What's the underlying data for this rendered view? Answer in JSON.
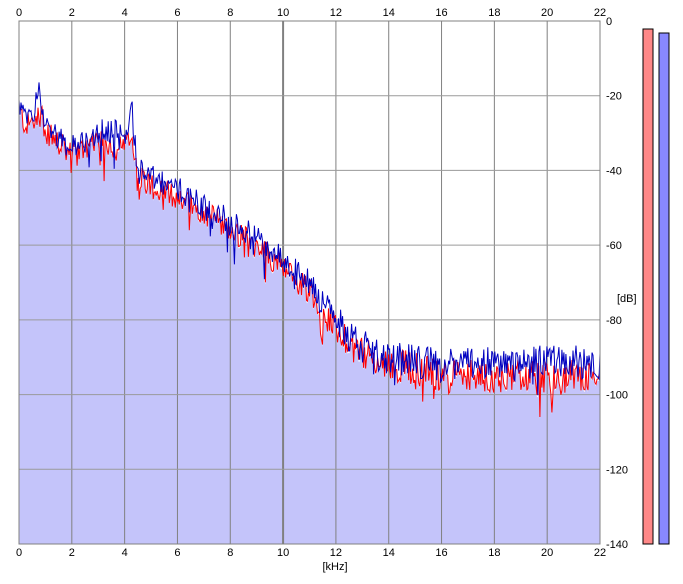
{
  "chart_data": {
    "type": "area",
    "xlabel": "[kHz]",
    "ylabel": "[dB]",
    "xlim": [
      0,
      22
    ],
    "ylim": [
      -140,
      0
    ],
    "x_ticks": [
      "0",
      "2",
      "4",
      "6",
      "8",
      "10",
      "12",
      "14",
      "16",
      "18",
      "20",
      "22"
    ],
    "y_ticks": [
      "0",
      "-20",
      "-40",
      "-60",
      "-80",
      "-100",
      "-120",
      "-140"
    ],
    "grid": true,
    "series": [
      {
        "color": "#ff0000",
        "x": [
          0,
          0.25,
          0.5,
          0.75,
          1,
          1.5,
          2,
          2.5,
          3,
          3.5,
          4,
          4.25,
          4.5,
          5,
          5.5,
          6,
          6.5,
          7,
          7.5,
          8,
          8.5,
          9,
          9.5,
          10,
          10.5,
          11,
          11.5,
          12,
          12.5,
          13,
          13.5,
          14,
          15,
          16,
          17,
          18,
          19,
          20,
          21,
          22
        ],
        "values": [
          -24,
          -28,
          -27,
          -24,
          -29,
          -33,
          -36,
          -34,
          -33,
          -33,
          -34,
          -31,
          -41,
          -44,
          -46,
          -47,
          -49,
          -51,
          -53,
          -56,
          -58,
          -60,
          -63,
          -66,
          -69,
          -72,
          -77,
          -82,
          -86,
          -89,
          -91,
          -92,
          -93,
          -95,
          -95,
          -95,
          -95,
          -96,
          -95,
          -96
        ]
      },
      {
        "color": "#0000c0",
        "x": [
          0,
          0.25,
          0.5,
          0.75,
          1,
          1.5,
          2,
          2.5,
          3,
          3.5,
          4,
          4.25,
          4.5,
          5,
          5.5,
          6,
          6.5,
          7,
          7.5,
          8,
          8.5,
          9,
          9.5,
          10,
          10.5,
          11,
          11.5,
          12,
          12.5,
          13,
          13.5,
          14,
          15,
          16,
          17,
          18,
          19,
          20,
          21,
          22
        ],
        "values": [
          -22,
          -27,
          -25,
          -19,
          -27,
          -31,
          -34,
          -31,
          -30,
          -29,
          -31,
          -22,
          -40,
          -42,
          -44,
          -45,
          -47,
          -49,
          -51,
          -54,
          -56,
          -58,
          -61,
          -64,
          -67,
          -70,
          -75,
          -80,
          -84,
          -87,
          -89,
          -90,
          -91,
          -92,
          -91,
          -92,
          -92,
          -91,
          -91,
          -92
        ]
      }
    ],
    "fill_color": "#c4c4fa",
    "meters": [
      {
        "channel": "left",
        "color": "#ff8888"
      },
      {
        "channel": "right",
        "color": "#8888ff"
      }
    ]
  }
}
